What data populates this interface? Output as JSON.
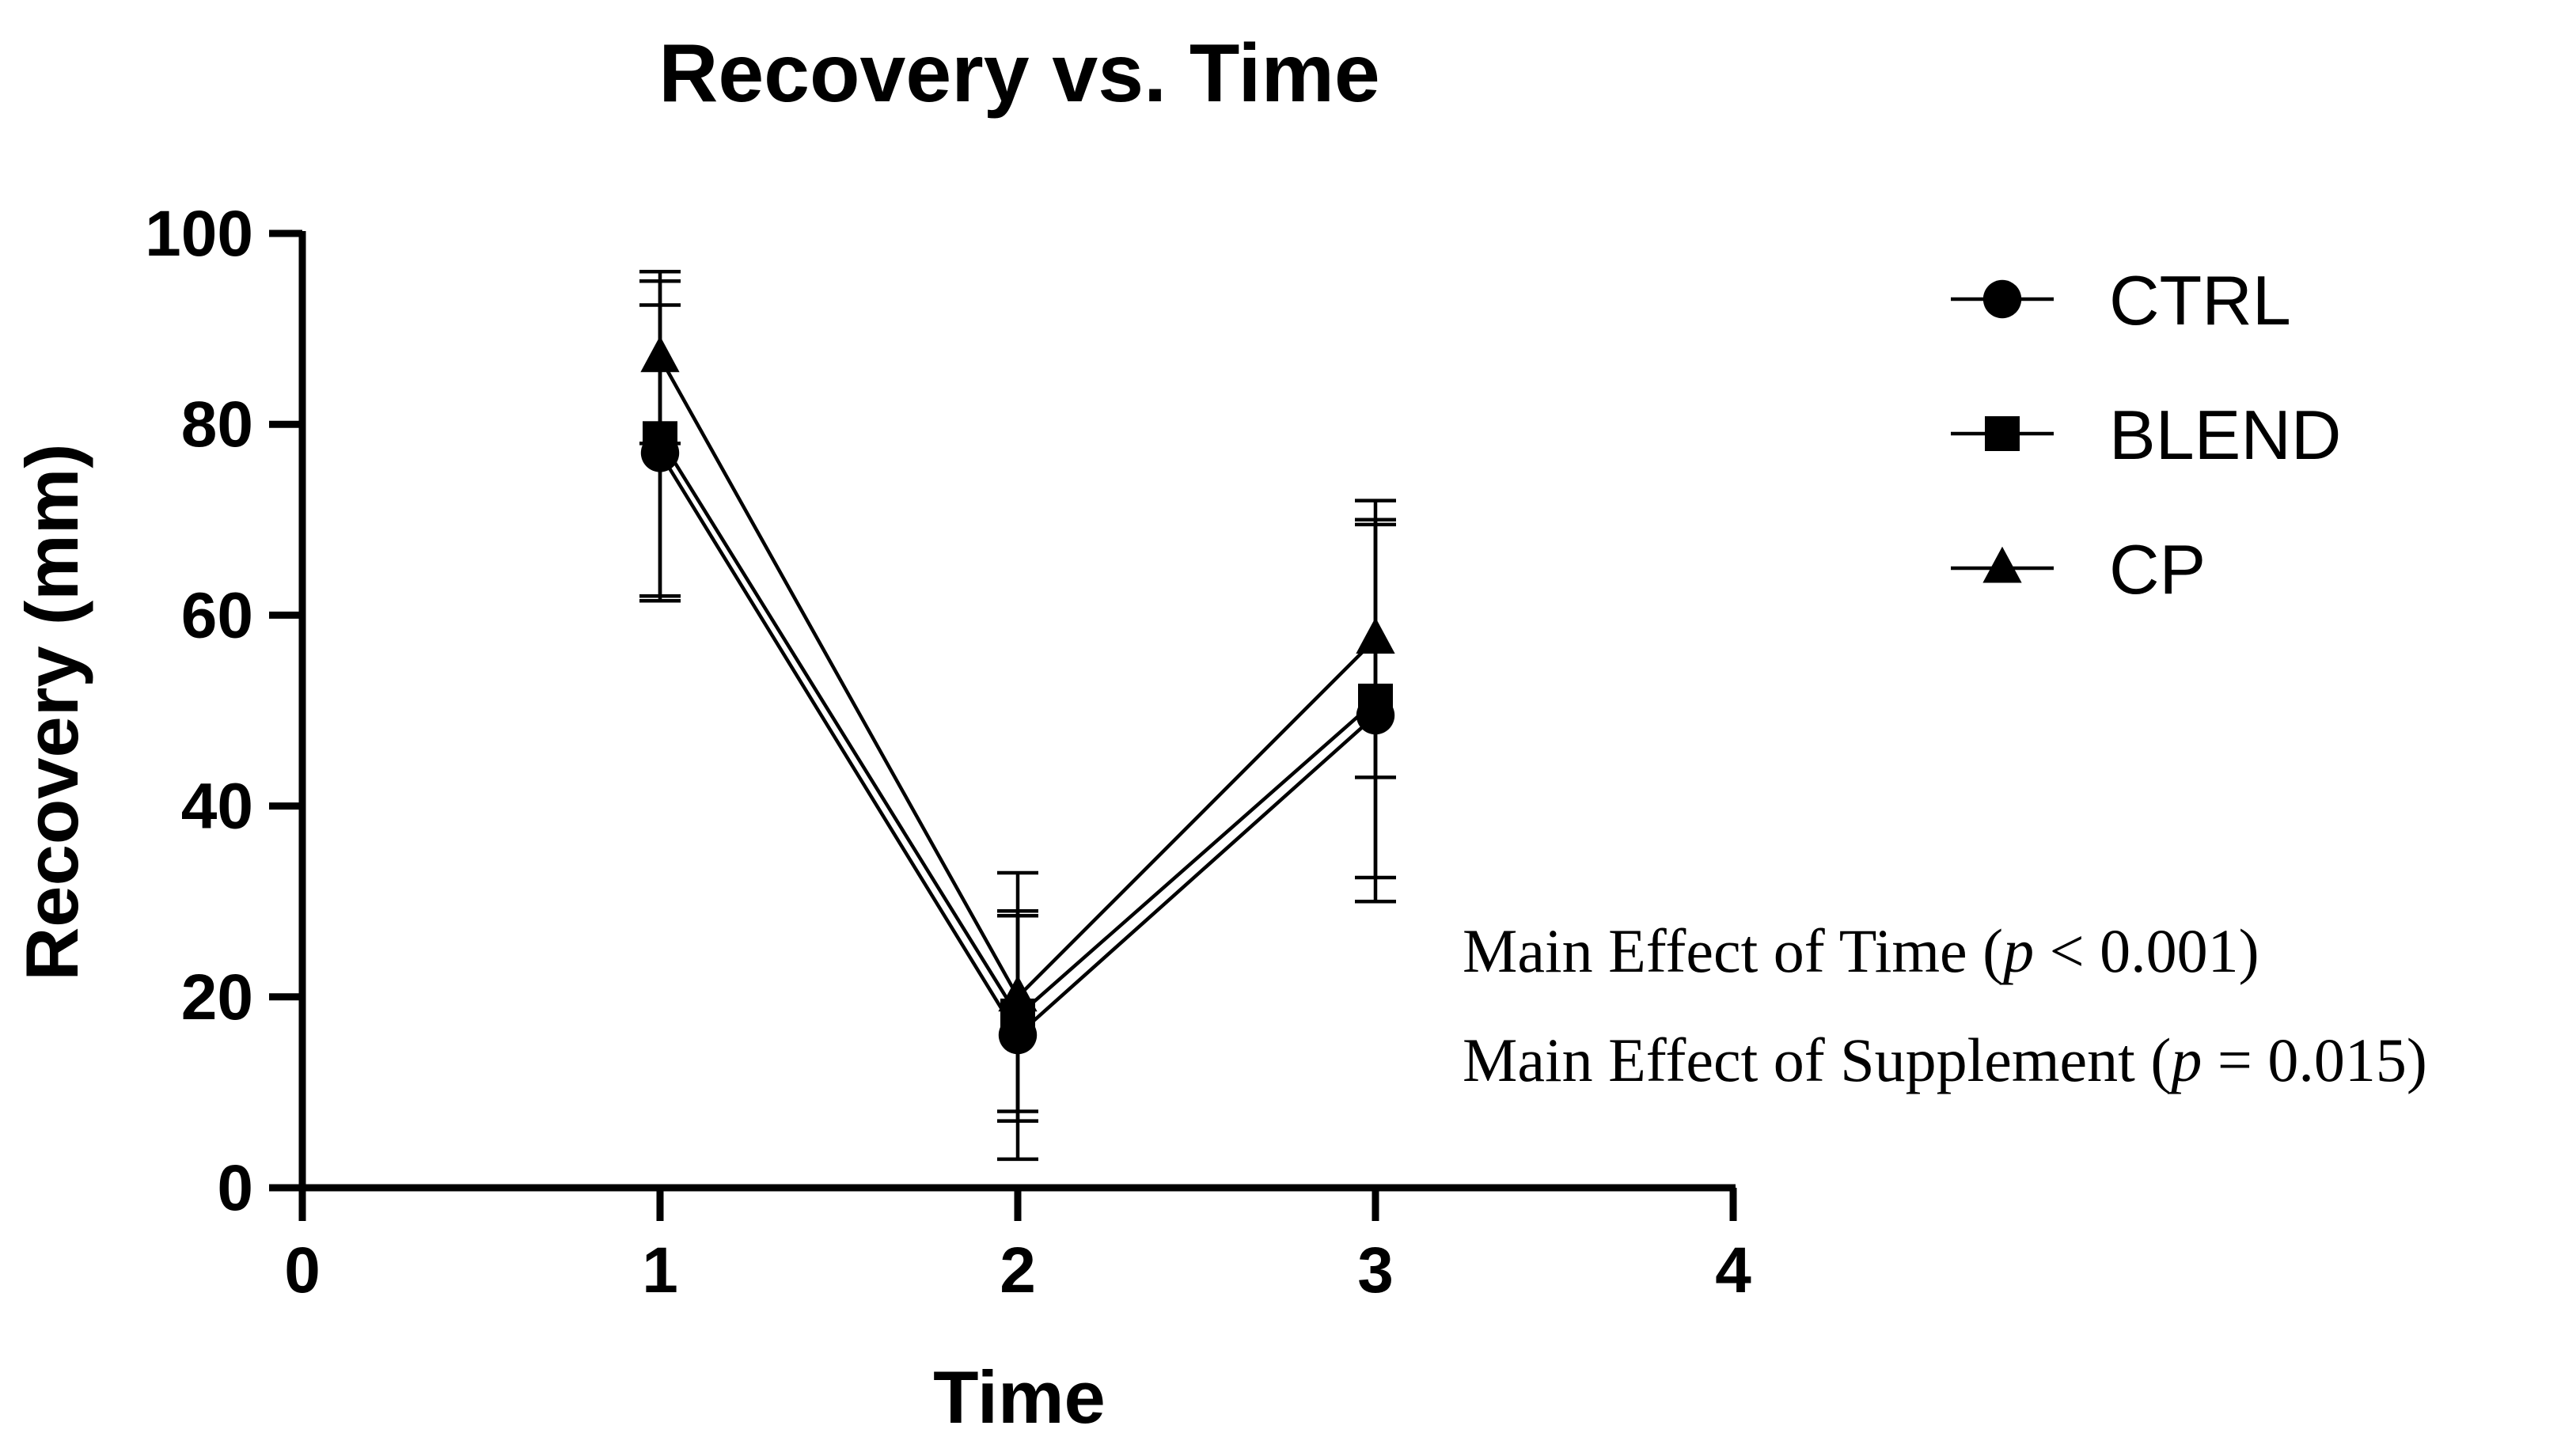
{
  "chart_data": {
    "type": "line",
    "title": "Recovery vs. Time",
    "xlabel": "Time",
    "ylabel": "Recovery (mm)",
    "xlim": [
      0,
      4
    ],
    "ylim": [
      0,
      100
    ],
    "x_ticks": [
      "0",
      "1",
      "2",
      "3",
      "4"
    ],
    "y_ticks": [
      "0",
      "20",
      "40",
      "60",
      "80",
      "100"
    ],
    "x": [
      1,
      2,
      3
    ],
    "series": [
      {
        "name": "CTRL",
        "marker": "circle",
        "values": [
          77,
          16,
          49.5
        ],
        "error_low": [
          61.5,
          3,
          30
        ],
        "error_high": [
          92.5,
          29,
          70
        ]
      },
      {
        "name": "BLEND",
        "marker": "square",
        "values": [
          78.5,
          18,
          51
        ],
        "error_low": [
          62,
          8,
          32.5
        ],
        "error_high": [
          95,
          28.5,
          69.5
        ]
      },
      {
        "name": "CP",
        "marker": "triangle",
        "values": [
          87,
          20,
          57.5
        ],
        "error_low": [
          78,
          7,
          43
        ],
        "error_high": [
          96,
          33,
          72
        ]
      }
    ],
    "legend": "right",
    "annotations": [
      {
        "prefix": "Main Effect of Time (",
        "stat": "p",
        "suffix": " < 0.001)"
      },
      {
        "prefix": "Main Effect of Supplement (",
        "stat": "p",
        "suffix": " = 0.015)"
      }
    ]
  }
}
